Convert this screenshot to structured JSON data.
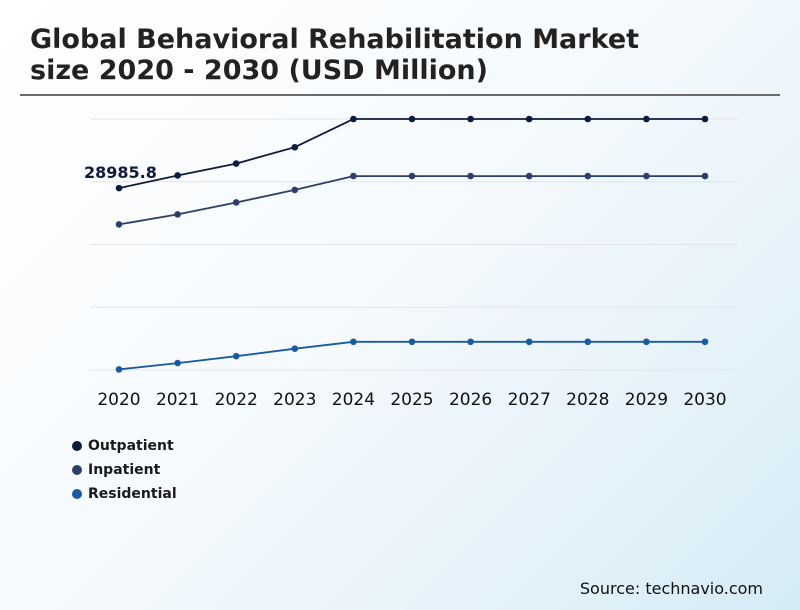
{
  "title_lines": [
    "Global Behavioral Rehabilitation Market",
    "size 2020 - 2030 (USD Million)"
  ],
  "source": "Source: technavio.com",
  "chart_data": {
    "type": "line",
    "title": "Global Behavioral Rehabilitation Market size 2020 - 2030 (USD Million)",
    "x": [
      "2020",
      "2021",
      "2022",
      "2023",
      "2024",
      "2025",
      "2026",
      "2027",
      "2028",
      "2029",
      "2030"
    ],
    "ylim": [
      0,
      50000
    ],
    "grid": true,
    "legend_position": "bottom-left",
    "annotations": [
      {
        "series": "Outpatient",
        "x": "2020",
        "label": "28985.8"
      }
    ],
    "series": [
      {
        "name": "Outpatient",
        "color": "#0d1b3e",
        "values": [
          28985.8,
          31000,
          32900,
          35500,
          40000,
          40000,
          40000,
          40000,
          40000,
          40000,
          40000
        ]
      },
      {
        "name": "Inpatient",
        "color": "#2c3e6b",
        "values": [
          23200,
          24800,
          26700,
          28700,
          30900,
          30900,
          30900,
          30900,
          30900,
          30900,
          30900
        ]
      },
      {
        "name": "Residential",
        "color": "#1a5aa0",
        "values": [
          100,
          1100,
          2200,
          3400,
          4500,
          4500,
          4500,
          4500,
          4500,
          4500,
          4500
        ]
      }
    ]
  }
}
